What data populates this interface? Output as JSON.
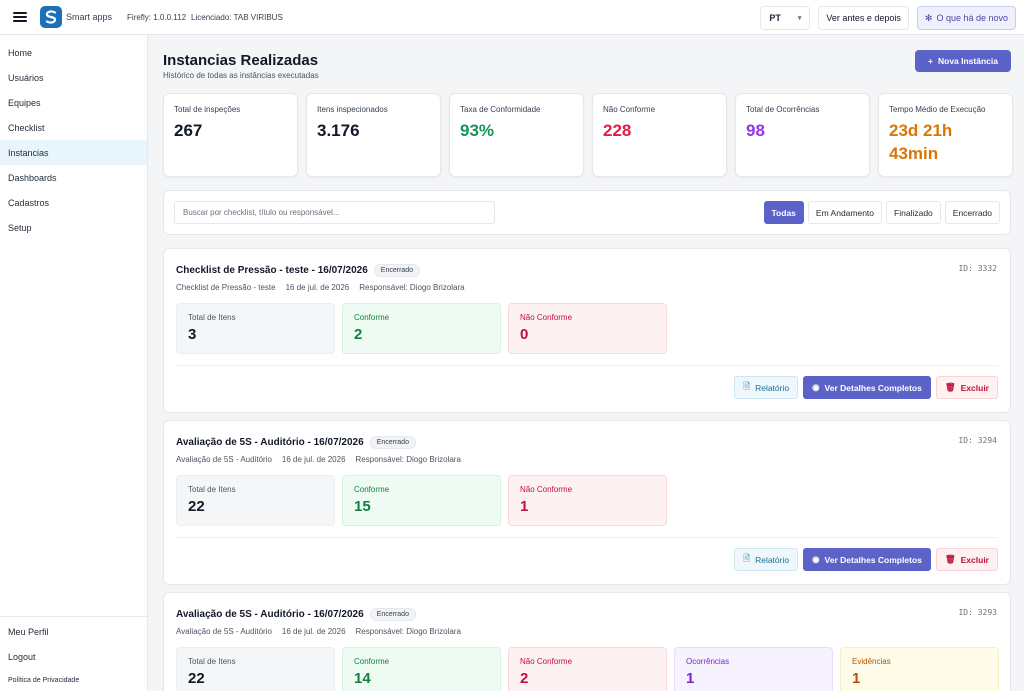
{
  "header": {
    "brand": "Smart apps",
    "version": "Firefly: 1.0.0.112",
    "license": "Licenciado: TAB VIRIBUS",
    "language": "PT",
    "before_after_label": "Ver antes e depois",
    "whats_new_label": "O que há de novo"
  },
  "sidebar": {
    "items": [
      {
        "label": "Home"
      },
      {
        "label": "Usuários"
      },
      {
        "label": "Equipes"
      },
      {
        "label": "Checklist"
      },
      {
        "label": "Instancias"
      },
      {
        "label": "Dashboards"
      },
      {
        "label": "Cadastros"
      },
      {
        "label": "Setup"
      }
    ],
    "active": "Instancias",
    "bottom": {
      "profile": "Meu Perfil",
      "logout": "Logout",
      "privacy": "Política de Privacidade"
    }
  },
  "page": {
    "title": "Instancias Realizadas",
    "subtitle": "Histórico de todas as instâncias executadas",
    "new_button": "Nova Instância"
  },
  "stats": [
    {
      "label": "Total de inspeções",
      "value": "267",
      "color": "#111827"
    },
    {
      "label": "Itens inspecionados",
      "value": "3.176",
      "color": "#111827"
    },
    {
      "label": "Taxa de Conformidade",
      "value": "93%",
      "color": "#15935b"
    },
    {
      "label": "Não Conforme",
      "value": "228",
      "color": "#e11d48"
    },
    {
      "label": "Total de Ocorrências",
      "value": "98",
      "color": "#9333ea"
    },
    {
      "label": "Tempo Médio de Execução",
      "value": "23d 21h 43min",
      "color": "#d97706"
    }
  ],
  "search": {
    "placeholder": "Buscar por checklist, título ou responsável..."
  },
  "filters": {
    "all": "Todas",
    "in_progress": "Em Andamento",
    "finished": "Finalizado",
    "closed": "Encerrado",
    "active": "Todas"
  },
  "instances": [
    {
      "title": "Checklist de Pressão - teste - 16/07/2026",
      "status": "Encerrado",
      "id": "ID: 3332",
      "checklist": "Checklist de Pressão - teste",
      "date": "16 de jul. de 2026",
      "responsible": "Responsável: Diogo Brizolara",
      "total_label": "Total de Itens",
      "total_value": "3",
      "ok_label": "Conforme",
      "ok_value": "2",
      "nok_label": "Não Conforme",
      "nok_value": "0"
    },
    {
      "title": "Avaliação de 5S - Auditório - 16/07/2026",
      "status": "Encerrado",
      "id": "ID: 3294",
      "checklist": "Avaliação de 5S - Auditório",
      "date": "16 de jul. de 2026",
      "responsible": "Responsável: Diogo Brizolara",
      "total_label": "Total de Itens",
      "total_value": "22",
      "ok_label": "Conforme",
      "ok_value": "15",
      "nok_label": "Não Conforme",
      "nok_value": "1"
    },
    {
      "title": "Avaliação de 5S - Auditório - 16/07/2026",
      "status": "Encerrado",
      "id": "ID: 3293",
      "checklist": "Avaliação de 5S - Auditório",
      "date": "16 de jul. de 2026",
      "responsible": "Responsável: Diogo Brizolara",
      "total_label": "Total de Itens",
      "total_value": "22",
      "ok_label": "Conforme",
      "ok_value": "14",
      "nok_label": "Não Conforme",
      "nok_value": "2",
      "occ_label": "Ocorrências",
      "occ_value": "1",
      "evi_label": "Evidências",
      "evi_value": "1"
    }
  ],
  "actions": {
    "report": "Relatório",
    "details": "Ver Detalhes Completos",
    "delete": "Excluir"
  },
  "icons": {
    "menu": "hamburger-icon",
    "brand": "logo-icon",
    "news": "sparkle-icon",
    "new": "plus-icon",
    "report": "document-icon",
    "details": "eye-icon",
    "delete": "trash-icon"
  }
}
